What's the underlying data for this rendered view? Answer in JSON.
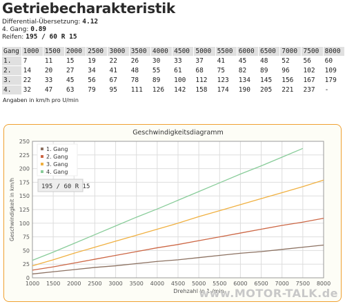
{
  "page": {
    "title": "Getriebecharakteristik",
    "diff_label": "Differential-Übersetzung:",
    "diff_value": "4.12",
    "gear4_label": "4. Gang:",
    "gear4_value": "0.89",
    "tyres_label": "Reifen:",
    "tyres_value": "195 / 60 R 15",
    "note": "Angaben in km/h pro U/min",
    "watermark": "www.MOTOR-TALK.de"
  },
  "table": {
    "header": [
      "Gang",
      "1000",
      "1500",
      "2000",
      "2500",
      "3000",
      "3500",
      "4000",
      "4500",
      "5000",
      "5500",
      "6000",
      "6500",
      "7000",
      "7500",
      "8000"
    ],
    "rows": [
      [
        "1.",
        "7",
        "11",
        "15",
        "19",
        "22",
        "26",
        "30",
        "33",
        "37",
        "41",
        "45",
        "48",
        "52",
        "56",
        "60"
      ],
      [
        "2.",
        "14",
        "20",
        "27",
        "34",
        "41",
        "48",
        "55",
        "61",
        "68",
        "75",
        "82",
        "89",
        "96",
        "102",
        "109"
      ],
      [
        "3.",
        "22",
        "33",
        "45",
        "56",
        "67",
        "78",
        "89",
        "100",
        "112",
        "123",
        "134",
        "145",
        "156",
        "167",
        "179"
      ],
      [
        "4.",
        "32",
        "47",
        "63",
        "79",
        "95",
        "111",
        "126",
        "142",
        "158",
        "174",
        "190",
        "205",
        "221",
        "237",
        "-"
      ]
    ]
  },
  "chart_data": {
    "type": "line",
    "title": "Geschwindigkeitsdiagramm",
    "xlabel": "Drehzahl in 1 /min",
    "ylabel": "Geschwindigkeit in km/h",
    "xlim": [
      1000,
      8000
    ],
    "ylim": [
      0,
      250
    ],
    "xticks": [
      1000,
      1500,
      2000,
      2500,
      3000,
      3500,
      4000,
      4500,
      5000,
      5500,
      6000,
      6500,
      7000,
      7500,
      8000
    ],
    "yticks": [
      0,
      25,
      50,
      75,
      100,
      125,
      150,
      175,
      200,
      225,
      250
    ],
    "grid": true,
    "legend_position": "top-left",
    "annotation": "195 / 60 R 15",
    "series": [
      {
        "name": "1. Gang",
        "color": "#8b7060",
        "x": [
          1000,
          1500,
          2000,
          2500,
          3000,
          3500,
          4000,
          4500,
          5000,
          5500,
          6000,
          6500,
          7000,
          7500,
          8000
        ],
        "values": [
          7,
          11,
          15,
          19,
          22,
          26,
          30,
          33,
          37,
          41,
          45,
          48,
          52,
          56,
          60
        ]
      },
      {
        "name": "2. Gang",
        "color": "#cc6644",
        "x": [
          1000,
          1500,
          2000,
          2500,
          3000,
          3500,
          4000,
          4500,
          5000,
          5500,
          6000,
          6500,
          7000,
          7500,
          8000
        ],
        "values": [
          14,
          20,
          27,
          34,
          41,
          48,
          55,
          61,
          68,
          75,
          82,
          89,
          96,
          102,
          109
        ]
      },
      {
        "name": "3. Gang",
        "color": "#f0b040",
        "x": [
          1000,
          1500,
          2000,
          2500,
          3000,
          3500,
          4000,
          4500,
          5000,
          5500,
          6000,
          6500,
          7000,
          7500,
          8000
        ],
        "values": [
          22,
          33,
          45,
          56,
          67,
          78,
          89,
          100,
          112,
          123,
          134,
          145,
          156,
          167,
          179
        ]
      },
      {
        "name": "4. Gang",
        "color": "#88cc99",
        "x": [
          1000,
          1500,
          2000,
          2500,
          3000,
          3500,
          4000,
          4500,
          5000,
          5500,
          6000,
          6500,
          7000,
          7500
        ],
        "values": [
          32,
          47,
          63,
          79,
          95,
          111,
          126,
          142,
          158,
          174,
          190,
          205,
          221,
          237
        ]
      }
    ]
  }
}
